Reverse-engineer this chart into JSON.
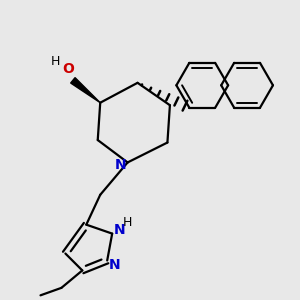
{
  "bg_color": "#e8e8e8",
  "bond_color": "#000000",
  "N_color": "#0000cc",
  "O_color": "#cc0000",
  "linewidth": 1.6,
  "figsize": [
    3.0,
    3.0
  ],
  "dpi": 100,
  "xlim": [
    0.0,
    6.0
  ],
  "ylim": [
    0.0,
    6.0
  ]
}
